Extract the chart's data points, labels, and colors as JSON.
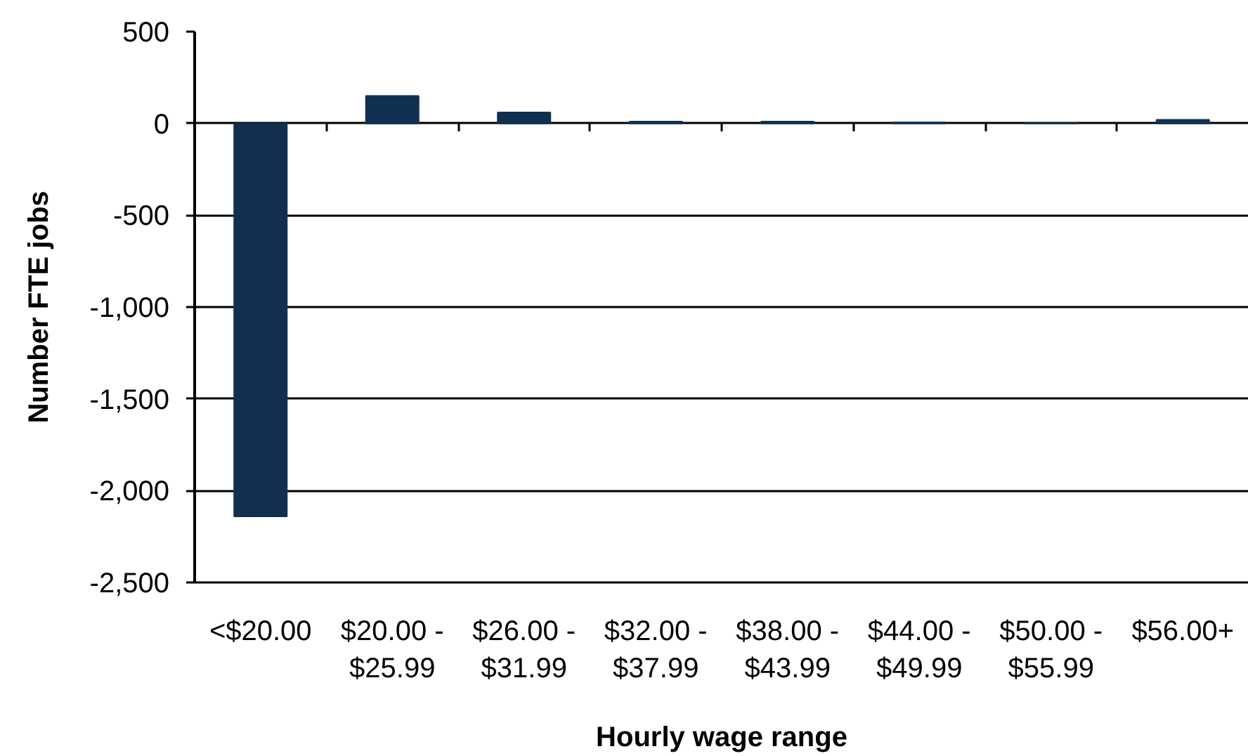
{
  "chart_data": {
    "type": "bar",
    "xlabel": "Hourly wage range",
    "ylabel": "Number FTE jobs",
    "categories": [
      "<$20.00",
      "$20.00 - $25.99",
      "$26.00 - $31.99",
      "$32.00 - $37.99",
      "$38.00 - $43.99",
      "$44.00 - $49.99",
      "$50.00 - $55.99",
      "$56.00+"
    ],
    "values": [
      -2140,
      150,
      60,
      10,
      10,
      5,
      2,
      20
    ],
    "color": "#11304f",
    "ylim": [
      -2500,
      500
    ],
    "yticks": [
      500,
      0,
      -500,
      {
        "value": -1000,
        "label": "-1,000"
      },
      {
        "value": -1500,
        "label": "-1,500"
      },
      {
        "value": -2000,
        "label": "-2,000"
      },
      {
        "value": -2500,
        "label": "-2,500"
      }
    ],
    "grid": "y"
  }
}
